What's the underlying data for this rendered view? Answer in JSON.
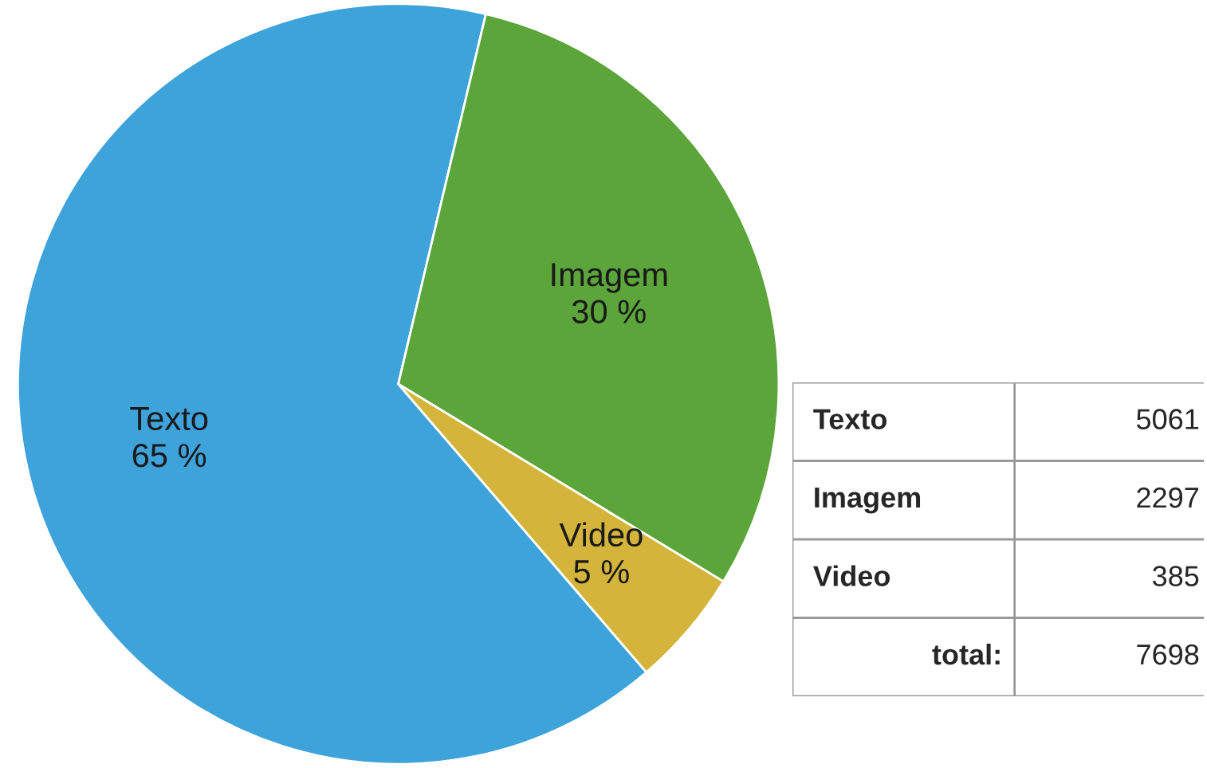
{
  "chart_data": [
    {
      "type": "pie",
      "categories": [
        "Texto",
        "Imagem",
        "Video"
      ],
      "values": [
        65,
        30,
        5
      ],
      "value_labels": [
        "65 %",
        "30 %",
        "5 %"
      ],
      "colors": [
        "#3ea3da",
        "#5ba53b",
        "#d5b43b"
      ]
    },
    {
      "type": "other",
      "categories": [
        "Texto",
        "Imagem",
        "Video"
      ],
      "values": [
        5061,
        2297,
        385
      ],
      "data_labels": true,
      "totals": [
        "7698"
      ],
      "annotations": [
        "total:"
      ]
    }
  ]
}
